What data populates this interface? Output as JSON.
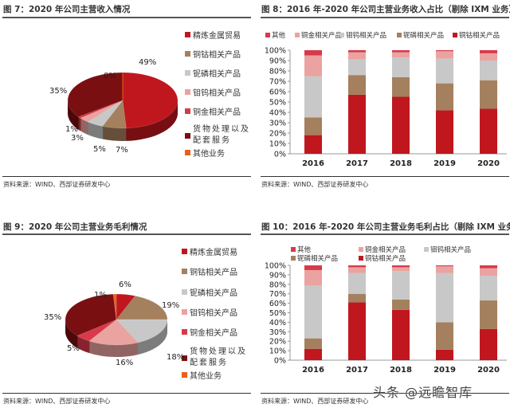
{
  "source": "资料来源：WIND、西部证券研发中心",
  "watermark": "头条 @远瞻智库",
  "pie_legend": [
    "精炼金属贸易",
    "铜钴相关产品",
    "铌磷相关产品",
    "钼钨相关产品",
    "铜金相关产品",
    "货物处理以及配套服务",
    "其他业务"
  ],
  "bar_legend": [
    "其他",
    "铜金相关产品",
    "钼钨相关产品",
    "铌磷相关产品",
    "铜钴相关产品"
  ],
  "chart_data": [
    {
      "id": "fig7",
      "type": "pie",
      "title": "图 7：2020 年公司主营收入情况",
      "labels": [
        "精炼金属贸易",
        "铜钴相关产品",
        "铌磷相关产品",
        "钼钨相关产品",
        "铜金相关产品",
        "货物处理以及配套服务",
        "其他业务"
      ],
      "values": [
        49,
        7,
        5,
        3,
        1,
        35,
        0
      ],
      "colors": [
        "#c0171f",
        "#a5805e",
        "#c8c8c8",
        "#eaa3a0",
        "#d9394a",
        "#7a0f12",
        "#e8601c"
      ],
      "legend": "right"
    },
    {
      "id": "fig8",
      "type": "bar",
      "stacked": true,
      "title": "图 8：2016 年-2020 年公司主营业务收入占比（剔除 IXM 业务）",
      "categories": [
        "2016",
        "2017",
        "2018",
        "2019",
        "2020"
      ],
      "ylim": [
        0,
        100
      ],
      "yticks": [
        "0%",
        "10%",
        "20%",
        "30%",
        "40%",
        "50%",
        "60%",
        "70%",
        "80%",
        "90%",
        "100%"
      ],
      "series": [
        {
          "name": "铜钴相关产品",
          "color": "#c0171f",
          "values": [
            18,
            57,
            55,
            42,
            43.5
          ]
        },
        {
          "name": "铌磷相关产品",
          "color": "#a5805e",
          "values": [
            17,
            19,
            19,
            26,
            27.5
          ]
        },
        {
          "name": "钼钨相关产品",
          "color": "#c8c8c8",
          "values": [
            40,
            15,
            19,
            24,
            19
          ]
        },
        {
          "name": "铜金相关产品",
          "color": "#eaa3a0",
          "values": [
            20,
            7,
            5,
            7,
            7
          ]
        },
        {
          "name": "其他",
          "color": "#d9394a",
          "values": [
            5,
            2,
            2,
            1,
            3
          ]
        }
      ],
      "legend": "top"
    },
    {
      "id": "fig9",
      "type": "pie",
      "title": "图 9：2020 年公司主营业务毛利情况",
      "labels": [
        "精炼金属贸易",
        "铜钴相关产品",
        "铌磷相关产品",
        "钼钨相关产品",
        "铜金相关产品",
        "货物处理以及配套服务",
        "其他业务"
      ],
      "values": [
        6,
        19,
        18,
        16,
        5,
        35,
        1
      ],
      "colors": [
        "#c0171f",
        "#a5805e",
        "#c8c8c8",
        "#eaa3a0",
        "#d9394a",
        "#7a0f12",
        "#e8601c"
      ],
      "legend": "right"
    },
    {
      "id": "fig10",
      "type": "bar",
      "stacked": true,
      "title": "图 10：2016 年-2020 年公司主营业务毛利占比（剔除 IXM 业务）",
      "categories": [
        "2016",
        "2017",
        "2018",
        "2019",
        "2020"
      ],
      "ylim": [
        0,
        100
      ],
      "yticks": [
        "0%",
        "10%",
        "20%",
        "30%",
        "40%",
        "50%",
        "60%",
        "70%",
        "80%",
        "90%",
        "100%"
      ],
      "series": [
        {
          "name": "铜钴相关产品",
          "color": "#c0171f",
          "values": [
            12,
            61,
            53,
            11,
            33
          ]
        },
        {
          "name": "铌磷相关产品",
          "color": "#a5805e",
          "values": [
            11,
            9,
            11,
            29,
            30
          ]
        },
        {
          "name": "钼钨相关产品",
          "color": "#c8c8c8",
          "values": [
            56,
            22,
            30,
            52,
            26
          ]
        },
        {
          "name": "铜金相关产品",
          "color": "#eaa3a0",
          "values": [
            16,
            6,
            4,
            7,
            8
          ]
        },
        {
          "name": "其他",
          "color": "#d9394a",
          "values": [
            5,
            2,
            2,
            1,
            3
          ]
        }
      ],
      "legend": "top"
    }
  ]
}
